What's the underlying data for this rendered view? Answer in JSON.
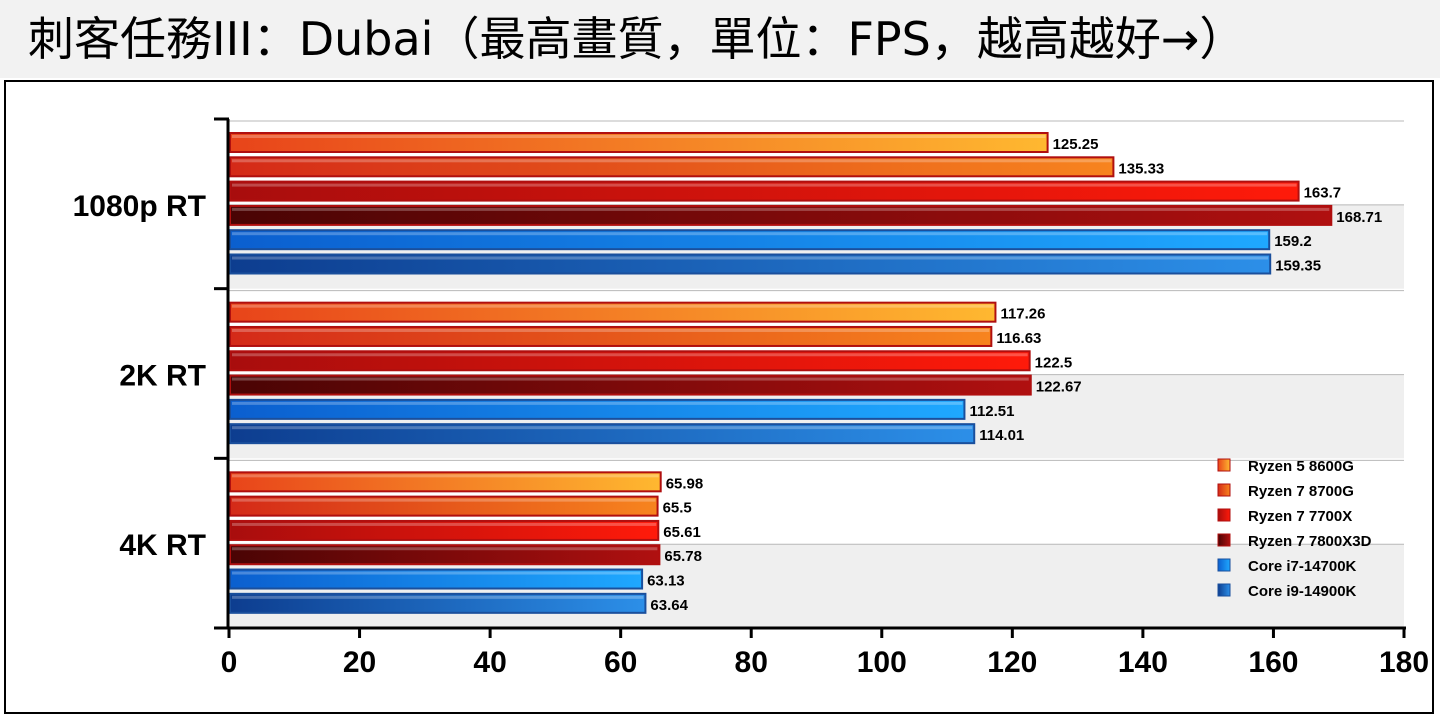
{
  "title": "刺客任務III：Dubai（最高畫質，單位：FPS，越高越好→）",
  "chart_data": {
    "type": "bar",
    "orientation": "horizontal",
    "categories": [
      "1080p RT",
      "2K RT",
      "4K RT"
    ],
    "series": [
      {
        "name": "Ryzen 5 8600G",
        "values": [
          125.25,
          117.26,
          65.98
        ],
        "color_light": "#ffb830",
        "color_dark": "#e8441a"
      },
      {
        "name": "Ryzen 7 8700G",
        "values": [
          135.33,
          116.63,
          65.5
        ],
        "color_light": "#f7841e",
        "color_dark": "#d42a18"
      },
      {
        "name": "Ryzen 7 7700X",
        "values": [
          163.7,
          122.5,
          65.61
        ],
        "color_light": "#ff1a0a",
        "color_dark": "#a80d0d"
      },
      {
        "name": "Ryzen 7 7800X3D",
        "values": [
          168.71,
          122.67,
          65.78
        ],
        "color_light": "#b01010",
        "color_dark": "#4a0404"
      },
      {
        "name": "Core i7-14700K",
        "values": [
          159.2,
          112.51,
          63.13
        ],
        "color_light": "#1fa8ff",
        "color_dark": "#0b5fcf"
      },
      {
        "name": "Core i9-14900K",
        "values": [
          159.35,
          114.01,
          63.64
        ],
        "color_light": "#2c8fe8",
        "color_dark": "#0d3d8f"
      }
    ],
    "value_labels": [
      [
        "125.25",
        "117.26",
        "65.98"
      ],
      [
        "135.33",
        "116.63",
        "65.5"
      ],
      [
        "163.7",
        "122.5",
        "65.61"
      ],
      [
        "168.71",
        "122.67",
        "65.78"
      ],
      [
        "159.2",
        "112.51",
        "63.13"
      ],
      [
        "159.35",
        "114.01",
        "63.64"
      ]
    ],
    "xlim": [
      0,
      180
    ],
    "xticks": [
      0,
      20,
      40,
      60,
      80,
      100,
      120,
      140,
      160,
      180
    ],
    "legend_position": "bottom-right inside plot",
    "grid": true
  }
}
